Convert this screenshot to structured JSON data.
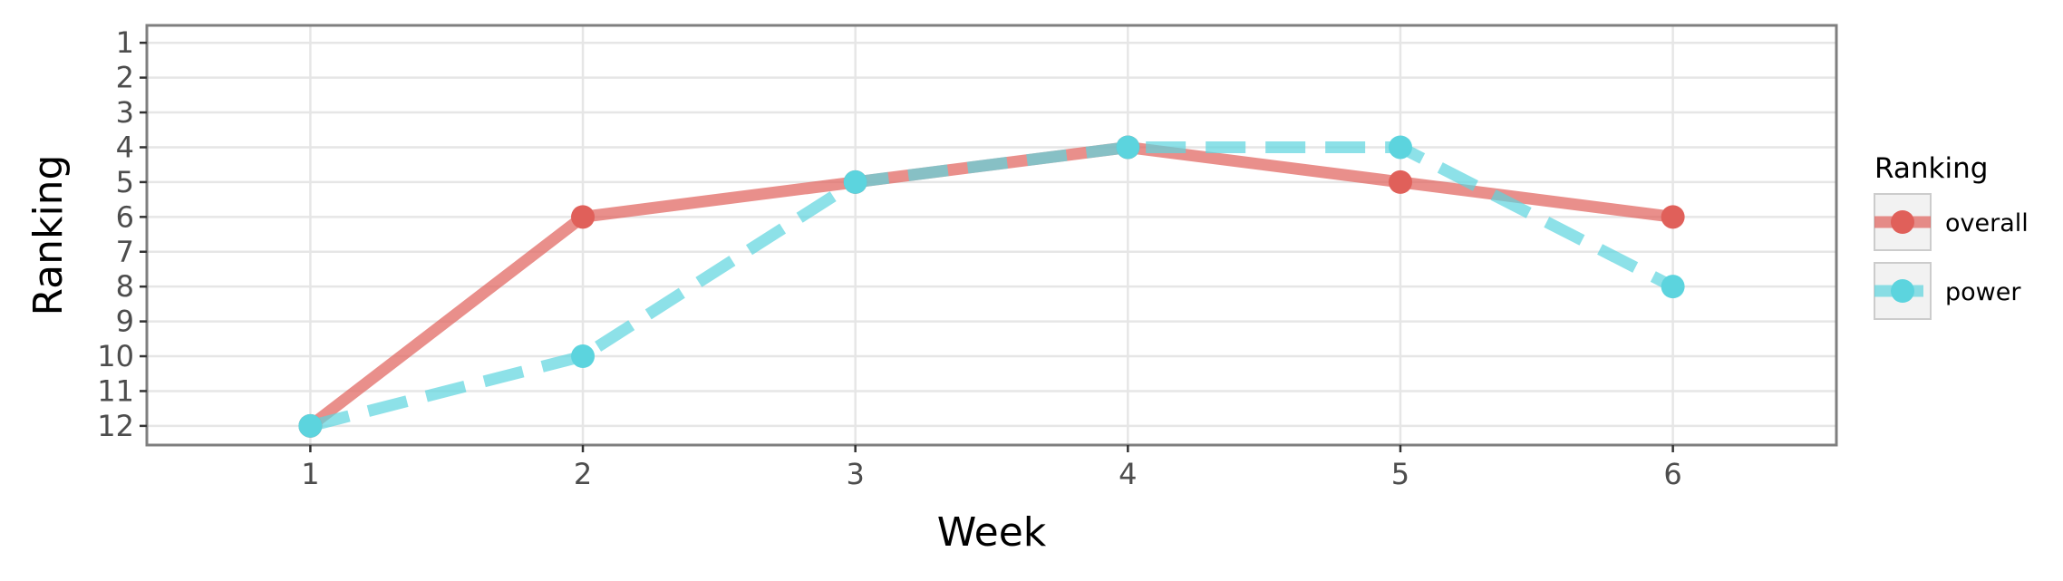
{
  "chart_data": {
    "type": "line",
    "xlabel": "Week",
    "ylabel": "Ranking",
    "x": [
      1,
      2,
      3,
      4,
      5,
      6
    ],
    "x_ticks": [
      "1",
      "2",
      "3",
      "4",
      "5",
      "6"
    ],
    "xlim": [
      0.4,
      6.6
    ],
    "y_ticks": [
      "1",
      "2",
      "3",
      "4",
      "5",
      "6",
      "7",
      "8",
      "9",
      "10",
      "11",
      "12"
    ],
    "ylim": [
      12.55,
      0.5
    ],
    "y_reversed": true,
    "grid": true,
    "legend": {
      "title": "Ranking",
      "placement": "right"
    },
    "series": [
      {
        "name": "overall",
        "values": [
          12,
          6,
          5,
          4,
          5,
          6
        ],
        "color": "#E0605A",
        "line_style": "solid"
      },
      {
        "name": "power",
        "values": [
          12,
          10,
          5,
          4,
          4,
          8
        ],
        "color": "#5CD4DE",
        "line_style": "dashed"
      }
    ]
  }
}
